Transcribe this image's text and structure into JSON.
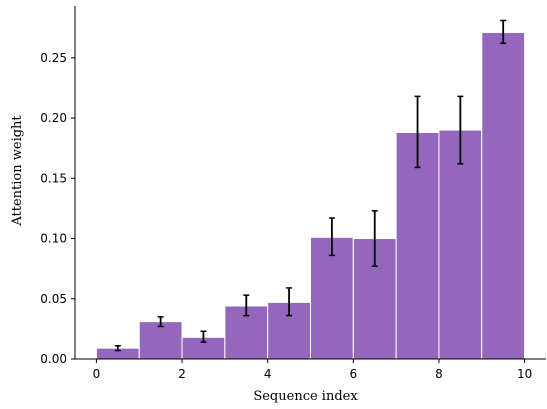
{
  "chart_data": {
    "type": "bar",
    "xlabel": "Sequence index",
    "ylabel": "Attention weight",
    "xlim": [
      -0.5,
      10.5
    ],
    "ylim": [
      0,
      0.293
    ],
    "x_ticks": [
      0,
      2,
      4,
      6,
      8,
      10
    ],
    "x_tick_labels": [
      "0",
      "2",
      "4",
      "6",
      "8",
      "10"
    ],
    "y_ticks": [
      0.0,
      0.05,
      0.1,
      0.15,
      0.2,
      0.25
    ],
    "y_tick_labels": [
      "0.00",
      "0.05",
      "0.10",
      "0.15",
      "0.20",
      "0.25"
    ],
    "bar_color": "#9467bd",
    "bar_edge_color": "#ffffff",
    "bar_width": 1.0,
    "bars": [
      {
        "x_start": 0,
        "value": 0.009,
        "err_low": 0.002,
        "err_high": 0.002
      },
      {
        "x_start": 1,
        "value": 0.031,
        "err_low": 0.004,
        "err_high": 0.004
      },
      {
        "x_start": 2,
        "value": 0.018,
        "err_low": 0.004,
        "err_high": 0.005
      },
      {
        "x_start": 3,
        "value": 0.044,
        "err_low": 0.008,
        "err_high": 0.009
      },
      {
        "x_start": 4,
        "value": 0.047,
        "err_low": 0.011,
        "err_high": 0.012
      },
      {
        "x_start": 5,
        "value": 0.101,
        "err_low": 0.015,
        "err_high": 0.016
      },
      {
        "x_start": 6,
        "value": 0.1,
        "err_low": 0.023,
        "err_high": 0.023
      },
      {
        "x_start": 7,
        "value": 0.188,
        "err_low": 0.029,
        "err_high": 0.03
      },
      {
        "x_start": 8,
        "value": 0.19,
        "err_low": 0.028,
        "err_high": 0.028
      },
      {
        "x_start": 9,
        "value": 0.271,
        "err_low": 0.009,
        "err_high": 0.01
      }
    ],
    "grid": false,
    "legend": "none"
  }
}
